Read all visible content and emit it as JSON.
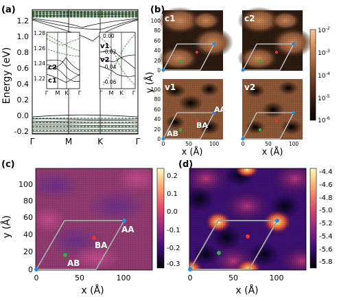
{
  "panel_labels": {
    "a": "(a)",
    "b": "(b)",
    "c": "(c)",
    "d": "(d)"
  },
  "panel_a": {
    "ylabel": "Energy (eV)",
    "yticks": [
      "1.2",
      "1.0",
      "0.8",
      "0.6",
      "0.4",
      "0.2",
      "0.0",
      "-0.2"
    ],
    "xticks": [
      "Γ",
      "M",
      "K",
      "Γ"
    ],
    "inset_left": {
      "yticks": [
        "1.28",
        "1.26",
        "1.24",
        "1.22"
      ],
      "xticks": [
        "Γ",
        "M",
        "K",
        "Γ"
      ],
      "band_labels": [
        "c2",
        "c1"
      ]
    },
    "inset_right": {
      "yticks": [
        "0.00",
        "-0.02",
        "-0.04",
        "-0.06"
      ],
      "xticks": [
        "Γ",
        "M",
        "K",
        "Γ"
      ],
      "band_labels": [
        "v1",
        "v2"
      ]
    }
  },
  "panel_b": {
    "maps": [
      "c1",
      "c2",
      "v1",
      "v2"
    ],
    "yticks": [
      "100",
      "80",
      "60",
      "40",
      "20",
      "0"
    ],
    "xticks": [
      "0",
      "50",
      "100"
    ],
    "ylabel": "y (Å)",
    "xlabel": "x (Å)",
    "stacking_labels": [
      "AA",
      "AB",
      "BA"
    ],
    "colorbar": {
      "ticks": [
        "10",
        "10",
        "10",
        "10",
        "10"
      ],
      "exponents": [
        "-2",
        "-3",
        "-4",
        "-5",
        "-6"
      ]
    }
  },
  "panel_c": {
    "yticks": [
      "100",
      "80",
      "60",
      "40",
      "20",
      "0"
    ],
    "xticks": [
      "0",
      "50",
      "100"
    ],
    "ylabel": "y (Å)",
    "xlabel": "x (Å)",
    "stacking_labels": [
      "AA",
      "BA",
      "AB"
    ],
    "colorbar_ticks": [
      "0.2",
      "0.1",
      "0.0",
      "-0.1",
      "-0.2",
      "-0.3"
    ]
  },
  "panel_d": {
    "xticks": [
      "0",
      "50",
      "100"
    ],
    "xlabel": "x (Å)",
    "colorbar_ticks": [
      "-4.4",
      "-4.6",
      "-4.8",
      "-5.0",
      "-5.2",
      "-5.4",
      "-5.6",
      "-5.8"
    ]
  },
  "colors": {
    "moire_cell": "#9a9a9a",
    "aa_marker": "#1e8fe0",
    "ab_marker": "#28b43a",
    "ba_marker": "#e8342a",
    "band_green": "#2a7a2a"
  }
}
